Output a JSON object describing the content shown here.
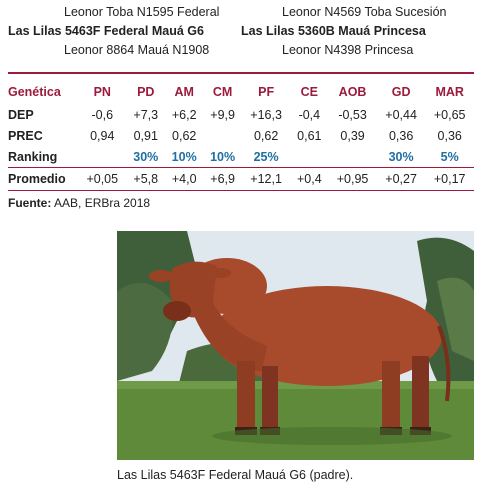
{
  "pedigree": {
    "sire_sire": "Leonor Toba N1595 Federal",
    "sire": "Las Lilas 5463F Federal Mauá G6",
    "sire_dam": "Leonor 8864 Mauá N1908",
    "dam_sire": "Leonor N4569 Toba Sucesión",
    "dam": "Las Lilas 5360B Mauá Princesa",
    "dam_dam": "Leonor N4398 Princesa"
  },
  "table": {
    "header_label": "Genética",
    "columns": [
      "PN",
      "PD",
      "AM",
      "CM",
      "PF",
      "CE",
      "AOB",
      "GD",
      "MAR"
    ],
    "rows": [
      {
        "label": "DEP",
        "type": "value",
        "cells": [
          "-0,6",
          "+7,3",
          "+6,2",
          "+9,9",
          "+16,3",
          "-0,4",
          "-0,53",
          "+0,44",
          "+0,65"
        ]
      },
      {
        "label": "PREC",
        "type": "value",
        "cells": [
          "0,94",
          "0,91",
          "0,62",
          "",
          "0,62",
          "0,61",
          "0,39",
          "0,36",
          "0,36"
        ]
      },
      {
        "label": "Ranking",
        "type": "rank",
        "cells": [
          "",
          "30%",
          "10%",
          "10%",
          "25%",
          "",
          "",
          "30%",
          "5%"
        ]
      }
    ],
    "promedio": {
      "label": "Promedio",
      "cells": [
        "+0,05",
        "+5,8",
        "+4,0",
        "+6,9",
        "+12,1",
        "+0,4",
        "+0,95",
        "+0,27",
        "+0,17"
      ]
    }
  },
  "source": {
    "label": "Fuente:",
    "text": "AAB, ERBra 2018"
  },
  "photo": {
    "subject": "bull",
    "colors": {
      "coat": "#a84a2c",
      "grass": "#5f8a3a",
      "sky": "#dfe8ee",
      "trees": "#3f5f3a"
    }
  },
  "caption": "Las Lilas 5463F Federal Mauá G6 (padre)."
}
